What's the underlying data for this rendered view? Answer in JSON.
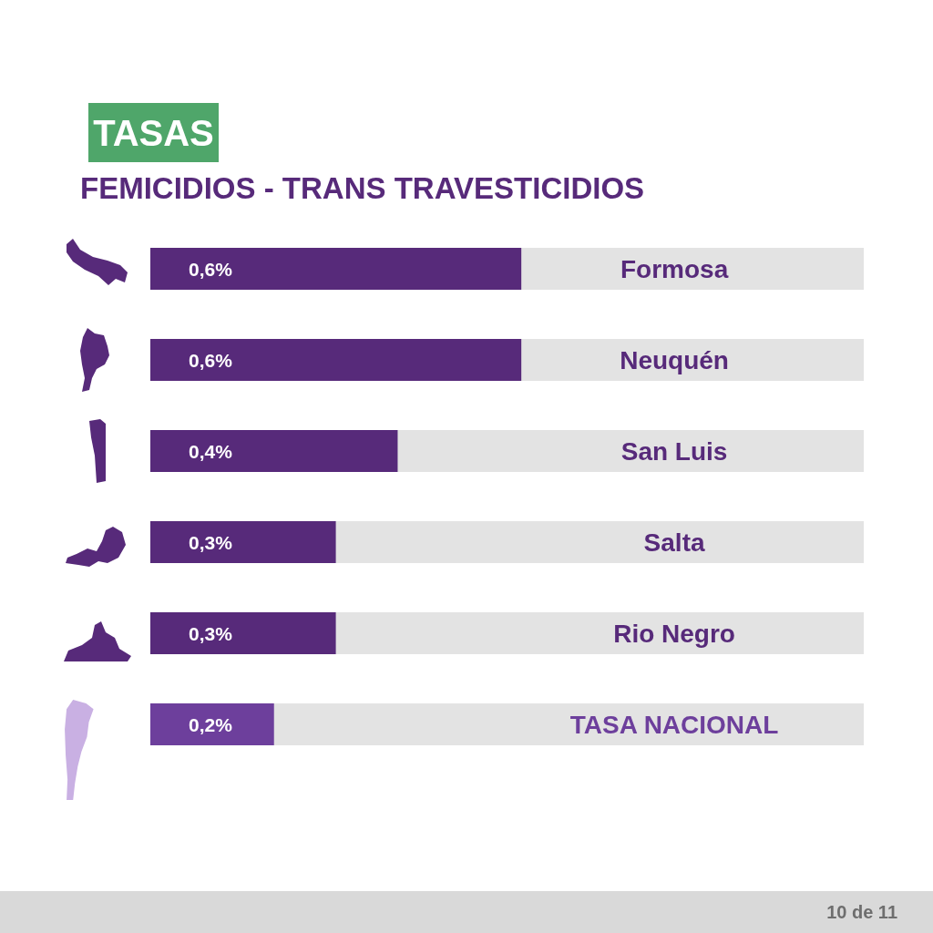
{
  "chart_data": {
    "type": "bar",
    "orientation": "horizontal",
    "title": "TASAS",
    "subtitle": "FEMICIDIOS - TRANS TRAVESTICIDIOS",
    "categories": [
      "Formosa",
      "Neuquén",
      "San Luis",
      "Salta",
      "Rio Negro",
      "TASA NACIONAL"
    ],
    "values": [
      0.6,
      0.6,
      0.4,
      0.3,
      0.3,
      0.2
    ],
    "colors": [
      "#572a7a",
      "#572a7a",
      "#572a7a",
      "#572a7a",
      "#572a7a",
      "#6d3f9c"
    ],
    "value_labels": [
      "0,6%",
      "0,6%",
      "0,4%",
      "0,3%",
      "0,3%",
      "0,2%"
    ],
    "annotations": [
      "10 de 11"
    ]
  }
}
